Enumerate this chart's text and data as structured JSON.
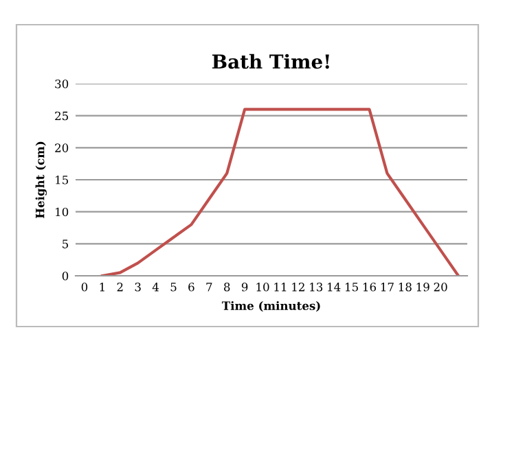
{
  "chart_data": {
    "type": "line",
    "title": "Bath Time!",
    "xlabel": "Time (minutes)",
    "ylabel": "Height (cm)",
    "categories": [
      "0",
      "1",
      "2",
      "3",
      "4",
      "5",
      "6",
      "7",
      "8",
      "9",
      "10",
      "11",
      "12",
      "13",
      "14",
      "15",
      "16",
      "17",
      "18",
      "19",
      "20",
      null
    ],
    "series": [
      {
        "color": "#c0504d",
        "values": [
          null,
          0,
          0.5,
          2,
          4,
          6,
          8,
          12,
          16,
          26,
          26,
          26,
          26,
          26,
          26,
          26,
          26,
          16,
          12,
          8,
          4,
          0
        ]
      }
    ],
    "ylim": [
      0,
      30
    ],
    "yticks": [
      0,
      5,
      10,
      15,
      20,
      25,
      30
    ],
    "grid": "y",
    "legend": false,
    "marker": "none",
    "line_style": "solid"
  }
}
